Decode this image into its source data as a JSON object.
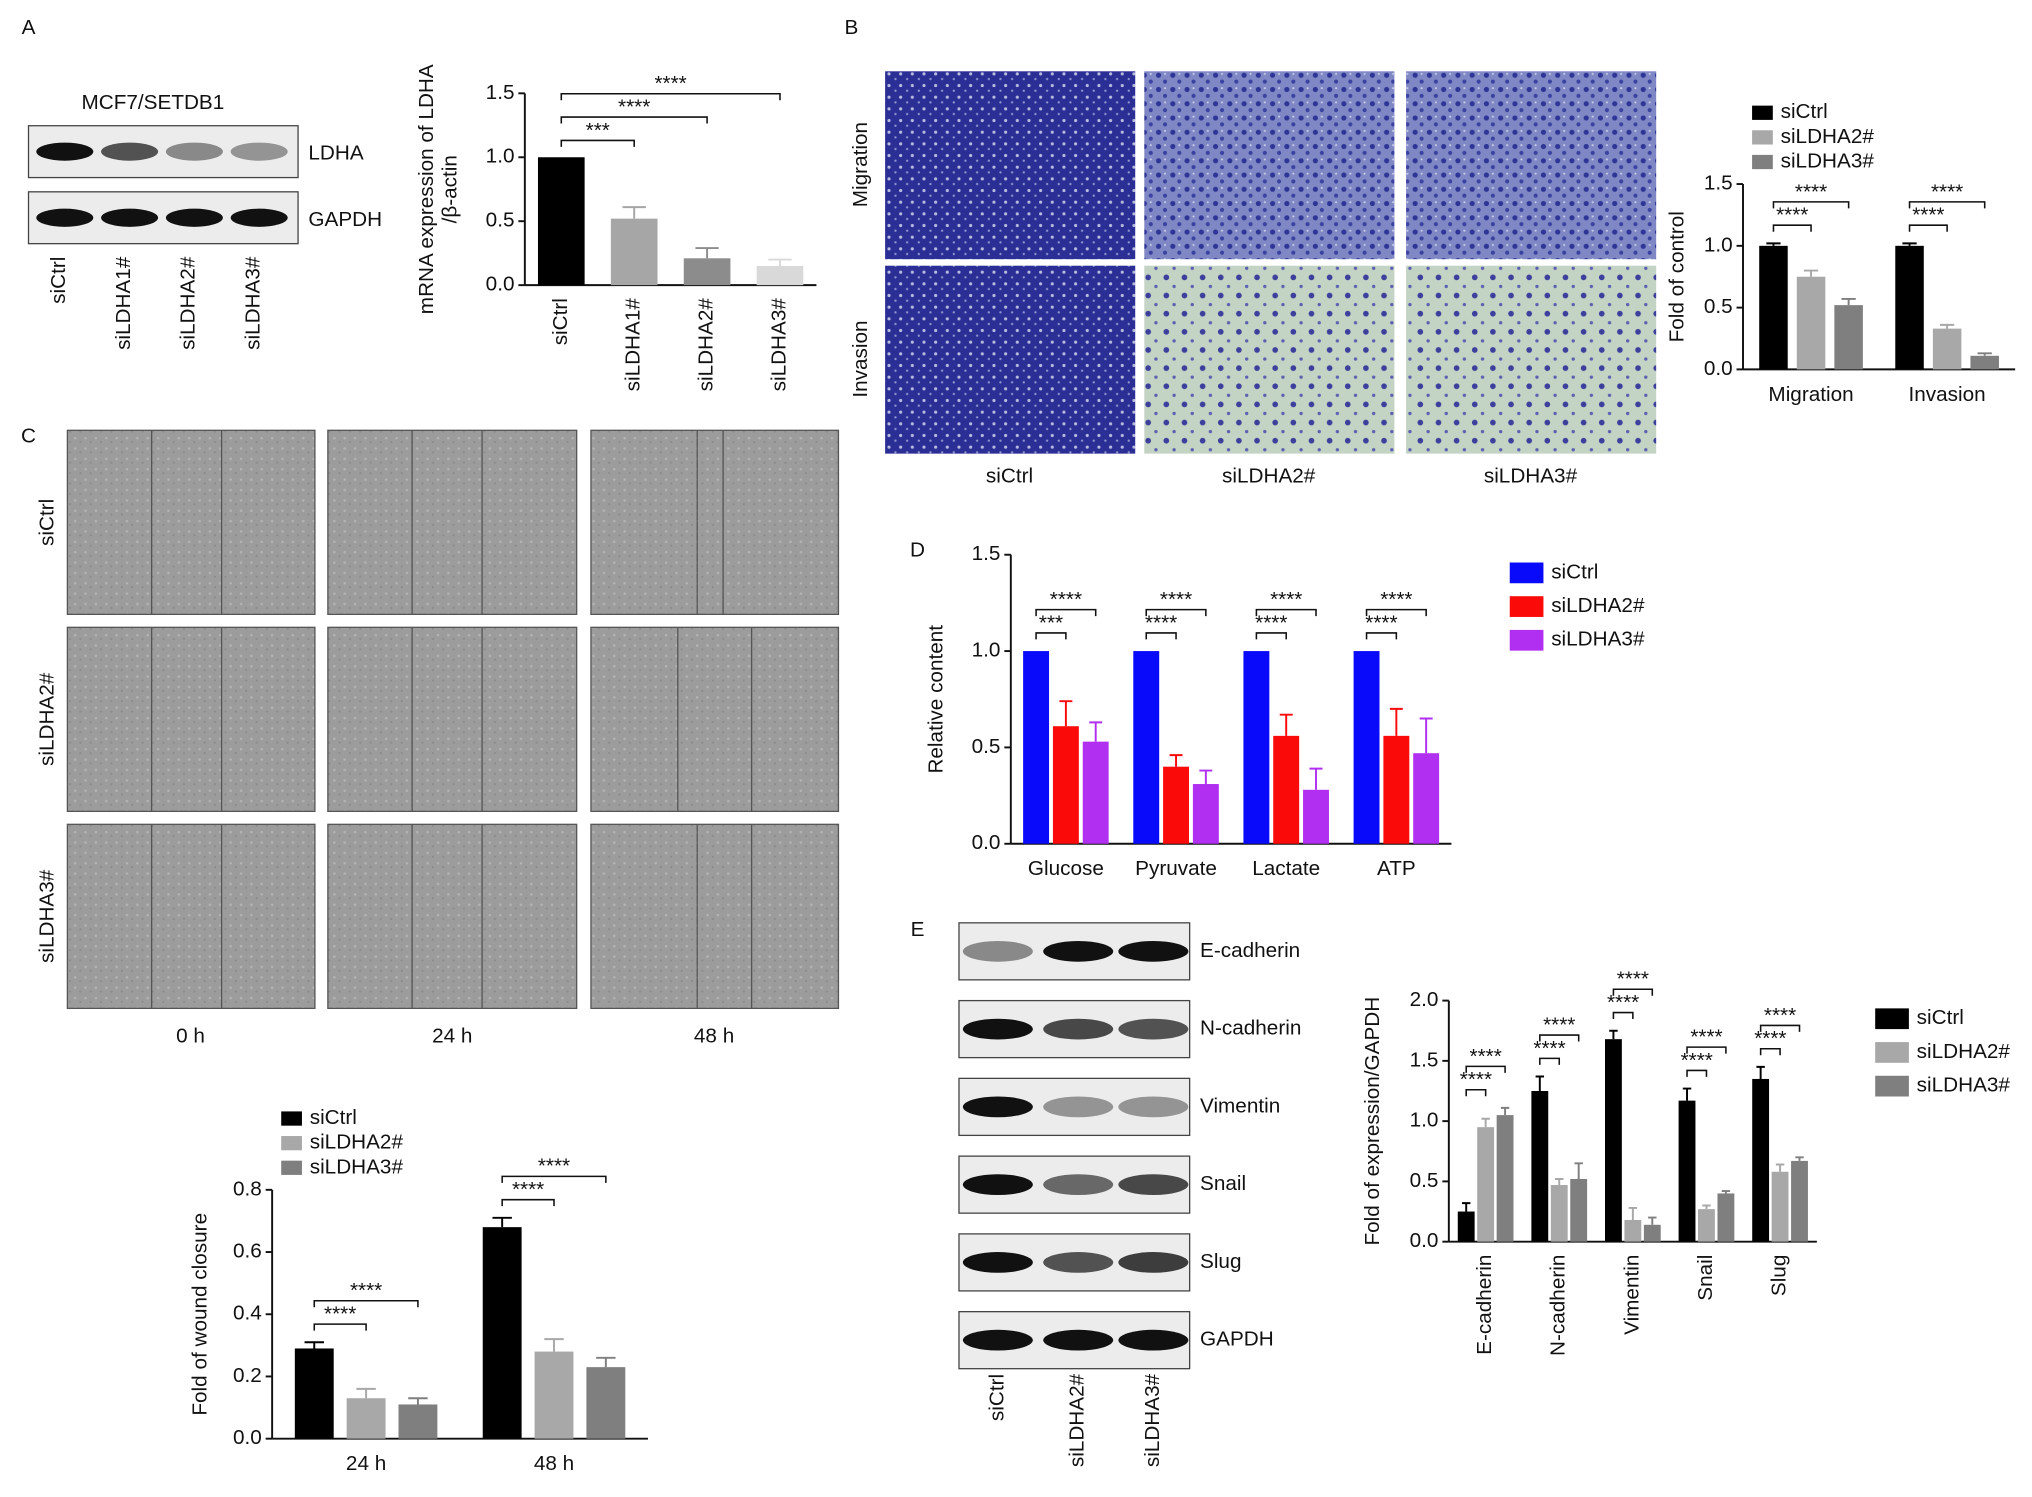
{
  "figure": {
    "panels": [
      "A",
      "B",
      "C",
      "D",
      "E"
    ],
    "blot_a": {
      "title": "MCF7/SETDB1",
      "bands": [
        "LDHA",
        "GAPDH"
      ],
      "lanes": [
        "siCtrl",
        "siLDHA1#",
        "siLDHA2#",
        "siLDHA3#"
      ]
    },
    "micrographs_b": {
      "rows": [
        "Migration",
        "Invasion"
      ],
      "columns": [
        "siCtrl",
        "siLDHA2#",
        "siLDHA3#"
      ]
    },
    "micrographs_c": {
      "rows": [
        "siCtrl",
        "siLDHA2#",
        "siLDHA3#"
      ],
      "columns": [
        "0 h",
        "24 h",
        "48 h"
      ]
    },
    "blot_e": {
      "bands": [
        "E-cadherin",
        "N-cadherin",
        "Vimentin",
        "Snail",
        "Slug",
        "GAPDH"
      ],
      "lanes": [
        "siCtrl",
        "siLDHA2#",
        "siLDHA3#"
      ]
    }
  },
  "chart_data": [
    {
      "type": "bar",
      "ylabel": [
        "mRNA expression of LDHA",
        "/β-actin"
      ],
      "categories": [
        "siCtrl",
        "siLDHA1#",
        "siLDHA2#",
        "siLDHA3#"
      ],
      "values": [
        1.0,
        0.52,
        0.21,
        0.15
      ],
      "errors": [
        null,
        0.09,
        0.08,
        0.05
      ],
      "colors": [
        "#000000",
        "#a6a6a6",
        "#8c8c8c",
        "#d9d9d9"
      ],
      "ylim": [
        0,
        1.5
      ],
      "yticks": [
        {
          "value": 0,
          "label": "0.0"
        },
        0.5,
        {
          "value": 1,
          "label": "1.0"
        },
        1.5
      ],
      "annotations": [
        "***",
        "****",
        "****"
      ]
    },
    {
      "type": "bar",
      "ylabel": "Fold of control",
      "legend": "upper left",
      "categories": [
        "Migration",
        "Invasion"
      ],
      "series": [
        {
          "name": "siCtrl",
          "color": "#000000",
          "values": [
            1.0,
            1.0
          ],
          "errors": [
            0.02,
            0.02
          ]
        },
        {
          "name": "siLDHA2#",
          "color": "#a8a8a8",
          "values": [
            0.75,
            0.33
          ],
          "errors": [
            0.05,
            0.03
          ]
        },
        {
          "name": "siLDHA3#",
          "color": "#7f7f7f",
          "values": [
            0.52,
            0.11
          ],
          "errors": [
            0.05,
            0.02
          ]
        }
      ],
      "ylim": [
        0,
        1.5
      ],
      "yticks": [
        {
          "value": 0,
          "label": "0.0"
        },
        0.5,
        {
          "value": 1,
          "label": "1.0"
        },
        1.5
      ],
      "annotations": [
        "****",
        "****",
        "****",
        "****"
      ]
    },
    {
      "type": "bar",
      "ylabel": "Fold of wound closure",
      "legend": "upper left",
      "categories": [
        "24 h",
        "48 h"
      ],
      "series": [
        {
          "name": "siCtrl",
          "color": "#000000",
          "values": [
            0.29,
            0.68
          ],
          "errors": [
            0.02,
            0.03
          ]
        },
        {
          "name": "siLDHA2#",
          "color": "#a8a8a8",
          "values": [
            0.13,
            0.28
          ],
          "errors": [
            0.03,
            0.04
          ]
        },
        {
          "name": "siLDHA3#",
          "color": "#7f7f7f",
          "values": [
            0.11,
            0.23
          ],
          "errors": [
            0.02,
            0.03
          ]
        }
      ],
      "ylim": [
        0,
        0.8
      ],
      "yticks": [
        {
          "value": 0,
          "label": "0.0"
        },
        0.2,
        0.4,
        0.6,
        0.8
      ],
      "annotations": [
        "****",
        "****",
        "****",
        "****"
      ]
    },
    {
      "type": "bar",
      "ylabel": "Relative content",
      "legend": "right",
      "categories": [
        "Glucose",
        "Pyruvate",
        "Lactate",
        "ATP"
      ],
      "series": [
        {
          "name": "siCtrl",
          "color": "#0a0afb",
          "values": [
            1.0,
            1.0,
            1.0,
            1.0
          ],
          "errors": [
            null,
            null,
            null,
            null
          ]
        },
        {
          "name": "siLDHA2#",
          "color": "#fb0a0a",
          "values": [
            0.61,
            0.4,
            0.56,
            0.56
          ],
          "errors": [
            0.13,
            0.06,
            0.11,
            0.14
          ]
        },
        {
          "name": "siLDHA3#",
          "color": "#b02ff0",
          "values": [
            0.53,
            0.31,
            0.28,
            0.47
          ],
          "errors": [
            0.1,
            0.07,
            0.11,
            0.18
          ]
        }
      ],
      "ylim": [
        0,
        1.5
      ],
      "yticks": [
        {
          "value": 0,
          "label": "0.0"
        },
        0.5,
        {
          "value": 1,
          "label": "1.0"
        },
        1.5
      ],
      "annotations": [
        "***",
        "****",
        "****",
        "****",
        "****",
        "****",
        "****",
        "****"
      ]
    },
    {
      "type": "bar",
      "ylabel": "Fold of expression/GAPDH",
      "legend": "right",
      "categories": [
        "E-cadherin",
        "N-cadherin",
        "Vimentin",
        "Snail",
        "Slug"
      ],
      "series": [
        {
          "name": "siCtrl",
          "color": "#000000",
          "values": [
            0.25,
            1.25,
            1.68,
            1.17,
            1.35
          ],
          "errors": [
            0.07,
            0.12,
            0.07,
            0.1,
            0.1
          ]
        },
        {
          "name": "siLDHA2#",
          "color": "#a8a8a8",
          "values": [
            0.95,
            0.47,
            0.18,
            0.27,
            0.58
          ],
          "errors": [
            0.07,
            0.05,
            0.1,
            0.03,
            0.06
          ]
        },
        {
          "name": "siLDHA3#",
          "color": "#7f7f7f",
          "values": [
            1.05,
            0.52,
            0.14,
            0.4,
            0.67
          ],
          "errors": [
            0.06,
            0.13,
            0.06,
            0.02,
            0.03
          ]
        }
      ],
      "ylim": [
        0,
        2
      ],
      "yticks": [
        {
          "value": 0,
          "label": "0.0"
        },
        0.5,
        {
          "value": 1,
          "label": "1.0"
        },
        1.5,
        {
          "value": 2,
          "label": "2.0"
        }
      ],
      "annotations": [
        "****",
        "****",
        "****",
        "****",
        "****",
        "****",
        "****",
        "****",
        "****",
        "****"
      ]
    }
  ]
}
